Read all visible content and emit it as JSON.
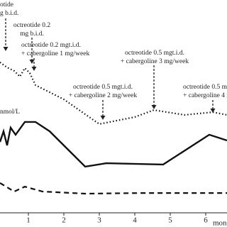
{
  "chart_data": {
    "type": "line",
    "y_label": "nmol/L",
    "x_label": "mon",
    "xlim": [
      0.2,
      6.6
    ],
    "xticks": [
      1,
      2,
      3,
      4,
      5,
      6
    ],
    "ylim": [
      0,
      100
    ],
    "series": [
      {
        "color": "#111",
        "dash": "dotted",
        "x": [
          0.2,
          0.4,
          0.6,
          0.76,
          0.9,
          1.04,
          1.2,
          2,
          3,
          4,
          4.54,
          5.4,
          6.2,
          6.6
        ],
        "values": [
          70.7,
          68.3,
          66.7,
          64,
          68,
          65.7,
          60,
          53.3,
          41.7,
          45,
          48.3,
          46,
          47.3,
          46
        ]
      },
      {
        "color": "#111",
        "dash": "solid",
        "x": [
          0.2,
          0.3,
          0.4,
          0.5,
          0.64,
          0.9,
          1.2,
          1.6,
          2.6,
          3.2,
          4.8,
          6.1,
          6.6
        ],
        "values": [
          33.3,
          38.3,
          31.7,
          40,
          36.7,
          42.7,
          42.7,
          38.3,
          21.7,
          23.3,
          22.7,
          36.7,
          34
        ]
      },
      {
        "color": "#111",
        "dash": "dashed",
        "x": [
          0.2,
          0.6,
          0.9,
          1.4,
          2.6,
          4.2,
          6.6
        ],
        "values": [
          14,
          10,
          12.3,
          10,
          9,
          9.3,
          9.3
        ]
      }
    ],
    "annotations": [
      {
        "lines": [
          "otide",
          "g b.i.d."
        ]
      },
      {
        "lines": [
          "octreotide 0.2",
          "mg b.i.d."
        ]
      },
      {
        "lines": [
          "octreotide 0.2 mgt.i.d.",
          "+ cabergoline 1 mg/week"
        ]
      },
      {
        "lines": [
          "octreotide 0.5 mgt.i.d.",
          "+ cabergoline 3 mg/week"
        ]
      },
      {
        "lines": [
          "octreotide 0.5 mgt.i.d.",
          "+ cabergoline 2 mg/week"
        ]
      },
      {
        "lines": [
          "octreotide 0.5 m",
          "+ cabergoline 4 m"
        ]
      }
    ]
  }
}
